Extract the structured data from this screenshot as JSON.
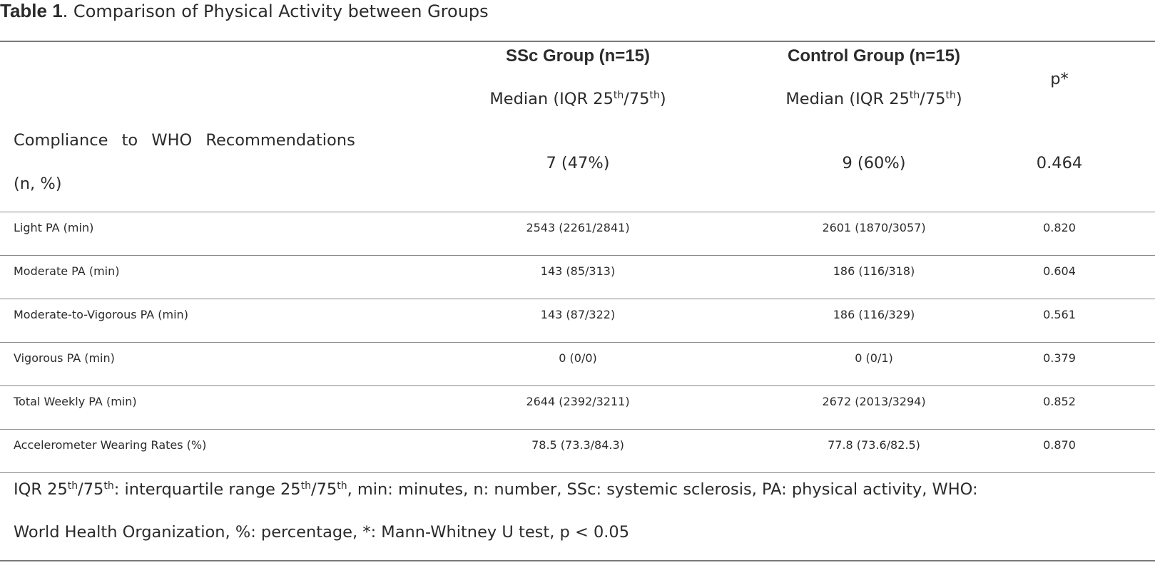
{
  "caption": {
    "label": "Table 1",
    "text": ". Comparison of Physical Activity between Groups"
  },
  "header": {
    "ssc_title": "SSc Group (n=15)",
    "control_title": "Control Group (n=15)",
    "p_title": "p*",
    "median_prefix": "Median (IQR 25",
    "th": "th",
    "slash75": "/75",
    "close_paren": ")"
  },
  "rows": [
    {
      "label_line1": "Compliance to WHO Recommendations",
      "label_line2": "(n, %)",
      "ssc": "7 (47%)",
      "control": "9 (60%)",
      "p": "0.464"
    },
    {
      "label": "Light PA (min)",
      "ssc": "2543 (2261/2841)",
      "control": "2601 (1870/3057)",
      "p": "0.820"
    },
    {
      "label": "Moderate PA (min)",
      "ssc": "143 (85/313)",
      "control": "186 (116/318)",
      "p": "0.604"
    },
    {
      "label": "Moderate-to-Vigorous PA (min)",
      "ssc": "143 (87/322)",
      "control": "186 (116/329)",
      "p": "0.561"
    },
    {
      "label": "Vigorous PA (min)",
      "ssc": "0 (0/0)",
      "control": "0 (0/1)",
      "p": "0.379"
    },
    {
      "label": "Total Weekly PA (min)",
      "ssc": "2644 (2392/3211)",
      "control": "2672 (2013/3294)",
      "p": "0.852"
    },
    {
      "label": "Accelerometer Wearing Rates (%)",
      "ssc": "78.5 (73.3/84.3)",
      "control": "77.8 (73.6/82.5)",
      "p": "0.870"
    }
  ],
  "footnote": {
    "iqr": "IQR 25",
    "th": "th",
    "slash75": "/75",
    "part1": ": interquartile range 25",
    "part2": ", min: minutes, n: number, SSc: systemic sclerosis, PA: physical activity, WHO:",
    "line2": "World Health Organization, %: percentage, *: Mann-Whitney U test, p < 0.05"
  }
}
